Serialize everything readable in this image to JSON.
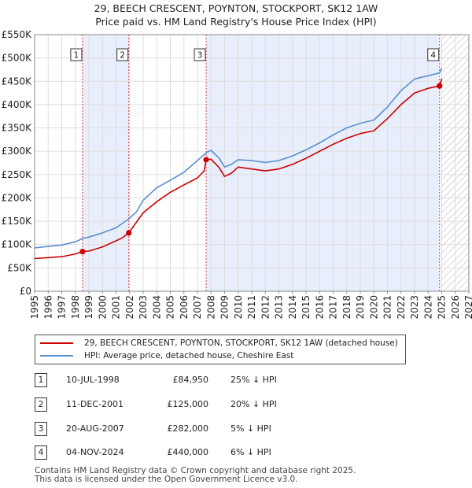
{
  "title_line1": "29, BEECH CRESCENT, POYNTON, STOCKPORT, SK12 1AW",
  "title_line2": "Price paid vs. HM Land Registry's House Price Index (HPI)",
  "chart_data": {
    "type": "line",
    "ylim": [
      0,
      550000
    ],
    "xlim": [
      1995,
      2027
    ],
    "y_ticks": [
      {
        "v": 0,
        "label": "£0"
      },
      {
        "v": 50000,
        "label": "£50K"
      },
      {
        "v": 100000,
        "label": "£100K"
      },
      {
        "v": 150000,
        "label": "£150K"
      },
      {
        "v": 200000,
        "label": "£200K"
      },
      {
        "v": 250000,
        "label": "£250K"
      },
      {
        "v": 300000,
        "label": "£300K"
      },
      {
        "v": 350000,
        "label": "£350K"
      },
      {
        "v": 400000,
        "label": "£400K"
      },
      {
        "v": 450000,
        "label": "£450K"
      },
      {
        "v": 500000,
        "label": "£500K"
      },
      {
        "v": 550000,
        "label": "£550K"
      }
    ],
    "x_ticks": [
      "1995",
      "1996",
      "1997",
      "1998",
      "1999",
      "2000",
      "2001",
      "2002",
      "2003",
      "2004",
      "2005",
      "2006",
      "2007",
      "2008",
      "2009",
      "2010",
      "2011",
      "2012",
      "2013",
      "2014",
      "2015",
      "2016",
      "2017",
      "2018",
      "2019",
      "2020",
      "2021",
      "2022",
      "2023",
      "2024",
      "2025",
      "2026",
      "2027"
    ],
    "shaded_periods": [
      [
        1998.53,
        2001.94
      ],
      [
        2007.64,
        2024.84
      ]
    ],
    "hatch_from": 2025.0,
    "series": [
      {
        "name": "29, BEECH CRESCENT, POYNTON, STOCKPORT, SK12 1AW (detached house)",
        "color": "#cc0000",
        "points": [
          [
            1995.0,
            70000
          ],
          [
            1996.0,
            72000
          ],
          [
            1997.0,
            74000
          ],
          [
            1998.0,
            80000
          ],
          [
            1998.53,
            84950
          ],
          [
            1999.0,
            86000
          ],
          [
            2000.0,
            95000
          ],
          [
            2001.0,
            108000
          ],
          [
            2001.5,
            115000
          ],
          [
            2001.94,
            125000
          ],
          [
            2002.5,
            148000
          ],
          [
            2003.0,
            168000
          ],
          [
            2004.0,
            192000
          ],
          [
            2005.0,
            212000
          ],
          [
            2006.0,
            228000
          ],
          [
            2007.0,
            243000
          ],
          [
            2007.5,
            258000
          ],
          [
            2007.64,
            282000
          ],
          [
            2008.0,
            283000
          ],
          [
            2008.6,
            265000
          ],
          [
            2009.0,
            246000
          ],
          [
            2009.5,
            253000
          ],
          [
            2010.0,
            266000
          ],
          [
            2011.0,
            262000
          ],
          [
            2012.0,
            258000
          ],
          [
            2013.0,
            262000
          ],
          [
            2014.0,
            272000
          ],
          [
            2015.0,
            285000
          ],
          [
            2016.0,
            300000
          ],
          [
            2017.0,
            315000
          ],
          [
            2018.0,
            328000
          ],
          [
            2019.0,
            338000
          ],
          [
            2020.0,
            344000
          ],
          [
            2021.0,
            370000
          ],
          [
            2022.0,
            400000
          ],
          [
            2023.0,
            425000
          ],
          [
            2024.0,
            435000
          ],
          [
            2024.84,
            440000
          ],
          [
            2025.0,
            455000
          ]
        ]
      },
      {
        "name": "HPI: Average price, detached house, Cheshire East",
        "color": "#5a8fd0",
        "points": [
          [
            1995.0,
            93000
          ],
          [
            1996.0,
            96000
          ],
          [
            1997.0,
            99000
          ],
          [
            1998.0,
            106000
          ],
          [
            1998.53,
            113000
          ],
          [
            1999.0,
            116000
          ],
          [
            2000.0,
            125000
          ],
          [
            2001.0,
            136000
          ],
          [
            2001.94,
            155000
          ],
          [
            2002.5,
            170000
          ],
          [
            2003.0,
            195000
          ],
          [
            2004.0,
            222000
          ],
          [
            2005.0,
            238000
          ],
          [
            2006.0,
            255000
          ],
          [
            2007.0,
            280000
          ],
          [
            2007.7,
            298000
          ],
          [
            2008.0,
            302000
          ],
          [
            2008.6,
            285000
          ],
          [
            2009.0,
            266000
          ],
          [
            2009.5,
            272000
          ],
          [
            2010.0,
            282000
          ],
          [
            2011.0,
            280000
          ],
          [
            2012.0,
            276000
          ],
          [
            2013.0,
            280000
          ],
          [
            2014.0,
            290000
          ],
          [
            2015.0,
            303000
          ],
          [
            2016.0,
            318000
          ],
          [
            2017.0,
            335000
          ],
          [
            2018.0,
            350000
          ],
          [
            2019.0,
            360000
          ],
          [
            2020.0,
            367000
          ],
          [
            2021.0,
            395000
          ],
          [
            2022.0,
            430000
          ],
          [
            2023.0,
            455000
          ],
          [
            2024.0,
            462000
          ],
          [
            2024.84,
            468000
          ],
          [
            2025.0,
            478000
          ]
        ]
      }
    ],
    "sales": [
      {
        "n": "1",
        "x": 1998.53,
        "price": 84950
      },
      {
        "n": "2",
        "x": 2001.94,
        "price": 125000
      },
      {
        "n": "3",
        "x": 2007.64,
        "price": 282000
      },
      {
        "n": "4",
        "x": 2024.84,
        "price": 440000
      }
    ]
  },
  "legend": {
    "red_label": "29, BEECH CRESCENT, POYNTON, STOCKPORT, SK12 1AW (detached house)",
    "blue_label": "HPI: Average price, detached house, Cheshire East"
  },
  "table": [
    {
      "n": "1",
      "date": "10-JUL-1998",
      "price": "£84,950",
      "hpi": "25% ↓ HPI"
    },
    {
      "n": "2",
      "date": "11-DEC-2001",
      "price": "£125,000",
      "hpi": "20% ↓ HPI"
    },
    {
      "n": "3",
      "date": "20-AUG-2007",
      "price": "£282,000",
      "hpi": "5% ↓ HPI"
    },
    {
      "n": "4",
      "date": "04-NOV-2024",
      "price": "£440,000",
      "hpi": "6% ↓ HPI"
    }
  ],
  "footer_line1": "Contains HM Land Registry data © Crown copyright and database right 2025.",
  "footer_line2": "This data is licensed under the Open Government Licence v3.0."
}
